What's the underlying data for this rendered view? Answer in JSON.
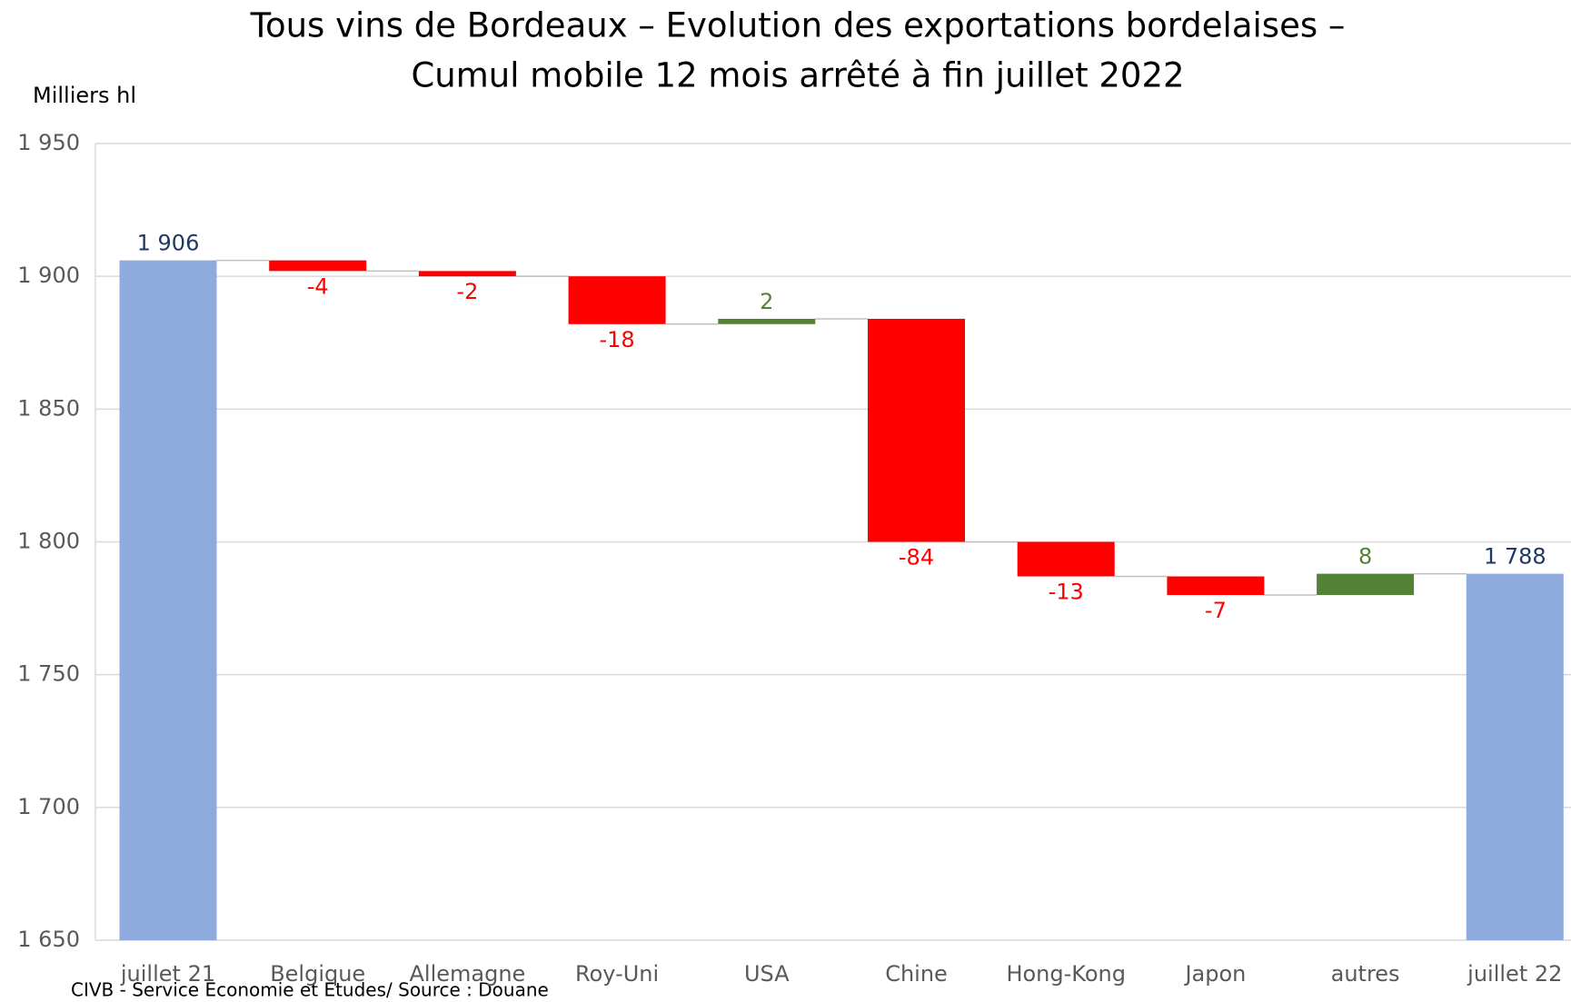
{
  "chart_data": {
    "type": "waterfall",
    "title": [
      "Tous vins de Bordeaux – Evolution des exportations bordelaises –",
      "Cumul mobile 12 mois arrêté à fin juillet 2022"
    ],
    "y_axis_label": "Milliers hl",
    "source": "CIVB - Service Economie et Etudes/ Source : Douane",
    "categories": [
      "juillet 21",
      "Belgique",
      "Allemagne",
      "Roy-Uni",
      "USA",
      "Chine",
      "Hong-Kong",
      "Japon",
      "autres",
      "juillet 22"
    ],
    "values": [
      1906,
      -4,
      -2,
      -18,
      2,
      -84,
      -13,
      -7,
      8,
      1788
    ],
    "value_labels": [
      "1 906",
      "-4",
      "-2",
      "-18",
      "2",
      "-84",
      "-13",
      "-7",
      "8",
      "1 788"
    ],
    "totals": [
      true,
      false,
      false,
      false,
      false,
      false,
      false,
      false,
      false,
      true
    ],
    "colors": {
      "total": "#8faadc",
      "increase": "#548235",
      "decrease": "#ff0000"
    },
    "label_colors": {
      "total": "#1f3864",
      "increase": "#548235",
      "decrease": "#ff0000"
    },
    "ylim": [
      1650,
      1950
    ],
    "yticks": [
      {
        "value": 1650,
        "label": "1 650"
      },
      {
        "value": 1700,
        "label": "1 700"
      },
      {
        "value": 1750,
        "label": "1 750"
      },
      {
        "value": 1800,
        "label": "1 800"
      },
      {
        "value": 1850,
        "label": "1 850"
      },
      {
        "value": 1900,
        "label": "1 900"
      },
      {
        "value": 1950,
        "label": "1 950"
      }
    ],
    "grid": true
  }
}
